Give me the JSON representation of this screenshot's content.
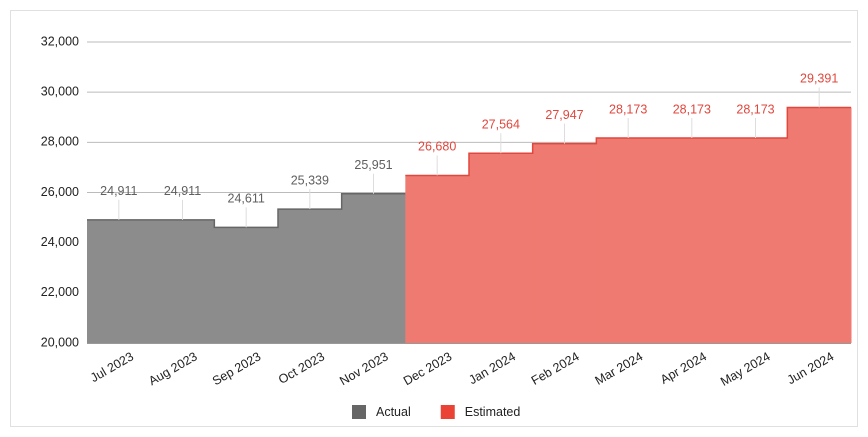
{
  "chart_data": {
    "type": "stepped-area",
    "categories": [
      "Jul 2023",
      "Aug 2023",
      "Sep 2023",
      "Oct 2023",
      "Nov 2023",
      "Dec 2023",
      "Jan 2024",
      "Feb 2024",
      "Mar 2024",
      "Apr 2024",
      "May 2024",
      "Jun 2024"
    ],
    "series": [
      {
        "name": "Actual",
        "color": "#8c8c8c",
        "line_color": "#666666",
        "label_color": "#5f5f5f",
        "values": [
          24911,
          24911,
          24611,
          25339,
          25951,
          null,
          null,
          null,
          null,
          null,
          null,
          null
        ],
        "value_labels": [
          "24,911",
          "24,911",
          "24,611",
          "25,339",
          "25,951",
          null,
          null,
          null,
          null,
          null,
          null,
          null
        ]
      },
      {
        "name": "Estimated",
        "color": "#ef7a71",
        "line_color": "#e0473d",
        "label_color": "#e0473d",
        "values": [
          null,
          null,
          null,
          null,
          null,
          26680,
          27564,
          27947,
          28173,
          28173,
          28173,
          29391
        ],
        "value_labels": [
          null,
          null,
          null,
          null,
          null,
          "26,680",
          "27,564",
          "27,947",
          "28,173",
          "28,173",
          "28,173",
          "29,391"
        ]
      }
    ],
    "ylim": [
      20000,
      32000
    ],
    "yticks": [
      {
        "value": 20000,
        "label": "20,000"
      },
      {
        "value": 22000,
        "label": "22,000"
      },
      {
        "value": 24000,
        "label": "24,000"
      },
      {
        "value": 26000,
        "label": "26,000"
      },
      {
        "value": 28000,
        "label": "28,000"
      },
      {
        "value": 30000,
        "label": "30,000"
      },
      {
        "value": 32000,
        "label": "32,000"
      }
    ],
    "grid": true,
    "legend": "bottom"
  }
}
